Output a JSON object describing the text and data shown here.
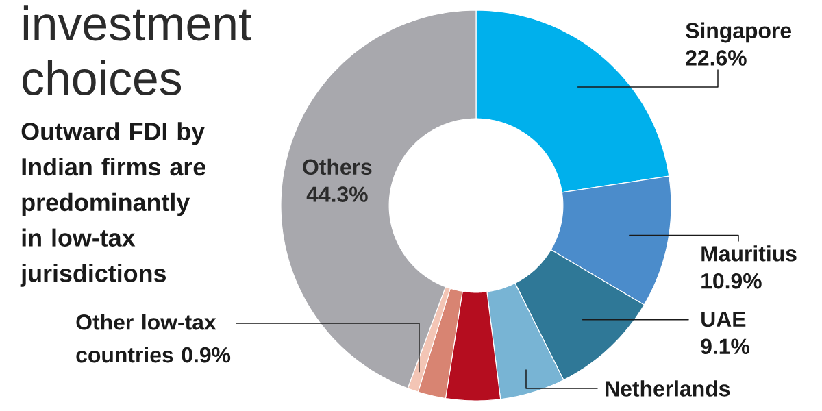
{
  "chart_data": {
    "type": "donut",
    "title": "investment choices",
    "subtitle": "Outward FDI by Indian firms are predominantly in low-tax jurisdictions",
    "categories": [
      "Singapore",
      "Mauritius",
      "UAE",
      "Netherlands",
      null,
      null,
      "Other low-tax countries",
      "Others"
    ],
    "values": [
      22.6,
      10.9,
      9.1,
      5.4,
      4.5,
      2.3,
      0.9,
      44.3
    ],
    "value_labels": [
      "22.6%",
      "10.9%",
      "9.1%",
      null,
      null,
      null,
      "0.9%",
      "44.3%"
    ],
    "colors": [
      "#00b0ec",
      "#4b8ccb",
      "#2f7897",
      "#78b4d4",
      "#b50d1f",
      "#d88472",
      "#f3c5b5",
      "#a8a8ad"
    ]
  }
}
